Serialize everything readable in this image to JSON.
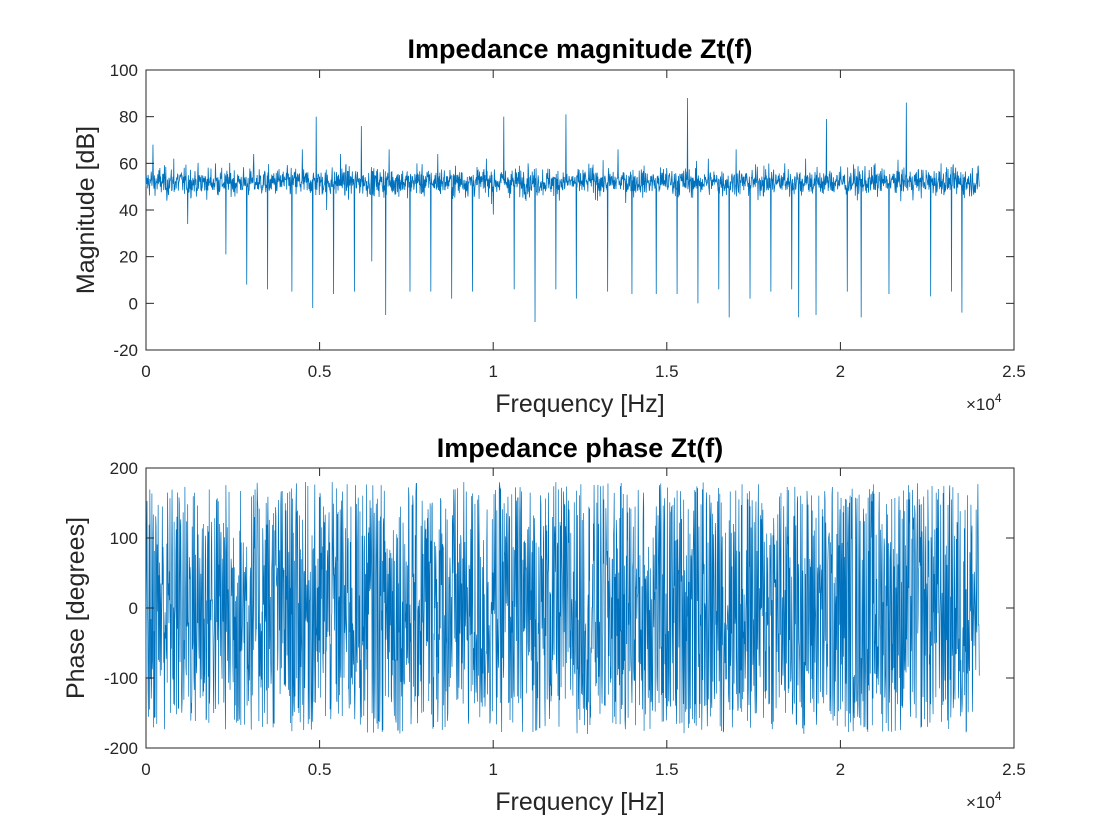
{
  "chart_data": [
    {
      "type": "line",
      "title": "Impedance magnitude Zt(f)",
      "xlabel": "Frequency [Hz]",
      "ylabel": "Magnitude [dB]",
      "xlim": [
        0,
        25000
      ],
      "ylim": [
        -20,
        100
      ],
      "x_tick_labels": [
        "0",
        "0.5",
        "1",
        "1.5",
        "2",
        "2.5"
      ],
      "y_tick_labels": [
        "-20",
        "0",
        "20",
        "40",
        "60",
        "80",
        "100"
      ],
      "x_exponent_base": "×10",
      "x_exponent_power": "4",
      "grid": false,
      "color": "#0072BD",
      "series": [
        {
          "description_points": [
            [
              0,
              50
            ],
            [
              200,
              68
            ],
            [
              400,
              58
            ],
            [
              600,
              44
            ],
            [
              800,
              62
            ],
            [
              1200,
              34
            ],
            [
              1600,
              48
            ],
            [
              2000,
              60
            ],
            [
              2300,
              21
            ],
            [
              2600,
              50
            ],
            [
              2900,
              8
            ],
            [
              3100,
              64
            ],
            [
              3500,
              6
            ],
            [
              3800,
              52
            ],
            [
              4200,
              5
            ],
            [
              4500,
              66
            ],
            [
              4800,
              -2
            ],
            [
              4900,
              80
            ],
            [
              5200,
              40
            ],
            [
              5400,
              4
            ],
            [
              5600,
              64
            ],
            [
              6000,
              5
            ],
            [
              6200,
              76
            ],
            [
              6500,
              18
            ],
            [
              6900,
              -5
            ],
            [
              7000,
              66
            ],
            [
              7300,
              55
            ],
            [
              7600,
              5
            ],
            [
              7800,
              60
            ],
            [
              8200,
              5
            ],
            [
              8400,
              64
            ],
            [
              8800,
              2
            ],
            [
              9100,
              56
            ],
            [
              9400,
              5
            ],
            [
              9800,
              62
            ],
            [
              10000,
              38
            ],
            [
              10300,
              80
            ],
            [
              10600,
              6
            ],
            [
              11000,
              60
            ],
            [
              11200,
              -8
            ],
            [
              11500,
              48
            ],
            [
              11800,
              6
            ],
            [
              12100,
              81
            ],
            [
              12400,
              2
            ],
            [
              12800,
              58
            ],
            [
              13000,
              56
            ],
            [
              13300,
              5
            ],
            [
              13600,
              66
            ],
            [
              14000,
              4
            ],
            [
              14300,
              56
            ],
            [
              14700,
              4
            ],
            [
              15000,
              58
            ],
            [
              15300,
              4
            ],
            [
              15600,
              88
            ],
            [
              15900,
              0
            ],
            [
              16200,
              62
            ],
            [
              16500,
              6
            ],
            [
              16800,
              -6
            ],
            [
              17000,
              66
            ],
            [
              17400,
              2
            ],
            [
              17800,
              59
            ],
            [
              18000,
              5
            ],
            [
              18400,
              60
            ],
            [
              18600,
              6
            ],
            [
              18800,
              -6
            ],
            [
              19000,
              62
            ],
            [
              19300,
              -5
            ],
            [
              19600,
              79
            ],
            [
              19900,
              55
            ],
            [
              20200,
              5
            ],
            [
              20600,
              -6
            ],
            [
              21000,
              60
            ],
            [
              21400,
              4
            ],
            [
              21700,
              56
            ],
            [
              21900,
              86
            ],
            [
              22300,
              52
            ],
            [
              22600,
              3
            ],
            [
              22900,
              60
            ],
            [
              23200,
              5
            ],
            [
              23500,
              -4
            ],
            [
              23800,
              58
            ],
            [
              24000,
              50
            ]
          ]
        }
      ]
    },
    {
      "type": "line",
      "title": "Impedance phase Zt(f)",
      "xlabel": "Frequency [Hz]",
      "ylabel": "Phase [degrees]",
      "xlim": [
        0,
        25000
      ],
      "ylim": [
        -200,
        200
      ],
      "x_tick_labels": [
        "0",
        "0.5",
        "1",
        "1.5",
        "2",
        "2.5"
      ],
      "y_tick_labels": [
        "-200",
        "-100",
        "0",
        "100",
        "200"
      ],
      "x_exponent_base": "×10",
      "x_exponent_power": "4",
      "grid": false,
      "color": "#0072BD",
      "value_range": [
        -180,
        180
      ],
      "x_range": [
        0,
        24000
      ]
    }
  ]
}
